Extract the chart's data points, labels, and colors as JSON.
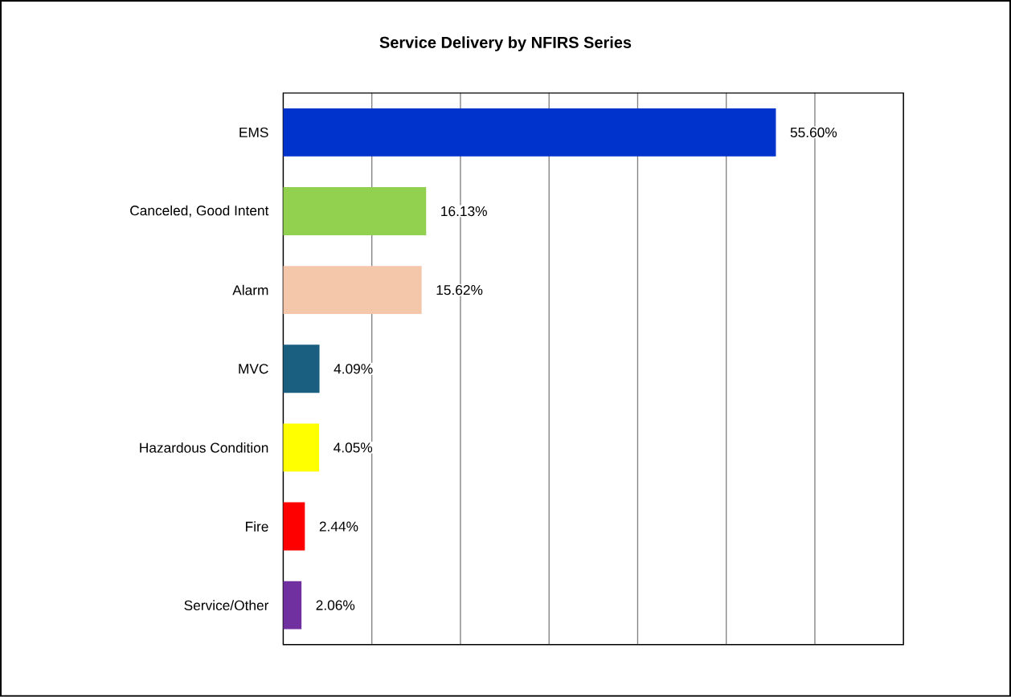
{
  "chart_data": {
    "type": "bar",
    "orientation": "horizontal",
    "title": "Service Delivery by NFIRS Series",
    "categories": [
      "EMS",
      "Canceled, Good Intent",
      "Alarm",
      "MVC",
      "Hazardous Condition",
      "Fire",
      "Service/Other"
    ],
    "values": [
      55.6,
      16.13,
      15.62,
      4.09,
      4.05,
      2.44,
      2.06
    ],
    "colors": [
      "#0033cc",
      "#92d050",
      "#f4c7ab",
      "#1a5e80",
      "#ffff00",
      "#ff0000",
      "#7030a0"
    ],
    "value_labels": [
      "55.60%",
      "16.13%",
      "15.62%",
      "4.09%",
      "4.05%",
      "2.44%",
      "2.06%"
    ],
    "xlim": [
      0,
      70
    ],
    "xticks": [
      {
        "value": 0,
        "label": null
      },
      {
        "value": 10,
        "label": null
      },
      {
        "value": 20,
        "label": null
      },
      {
        "value": 30,
        "label": null
      },
      {
        "value": 40,
        "label": null
      },
      {
        "value": 50,
        "label": null
      },
      {
        "value": 60,
        "label": null
      },
      {
        "value": 70,
        "label": null
      }
    ],
    "grid": "x",
    "tick_labels": "y"
  }
}
